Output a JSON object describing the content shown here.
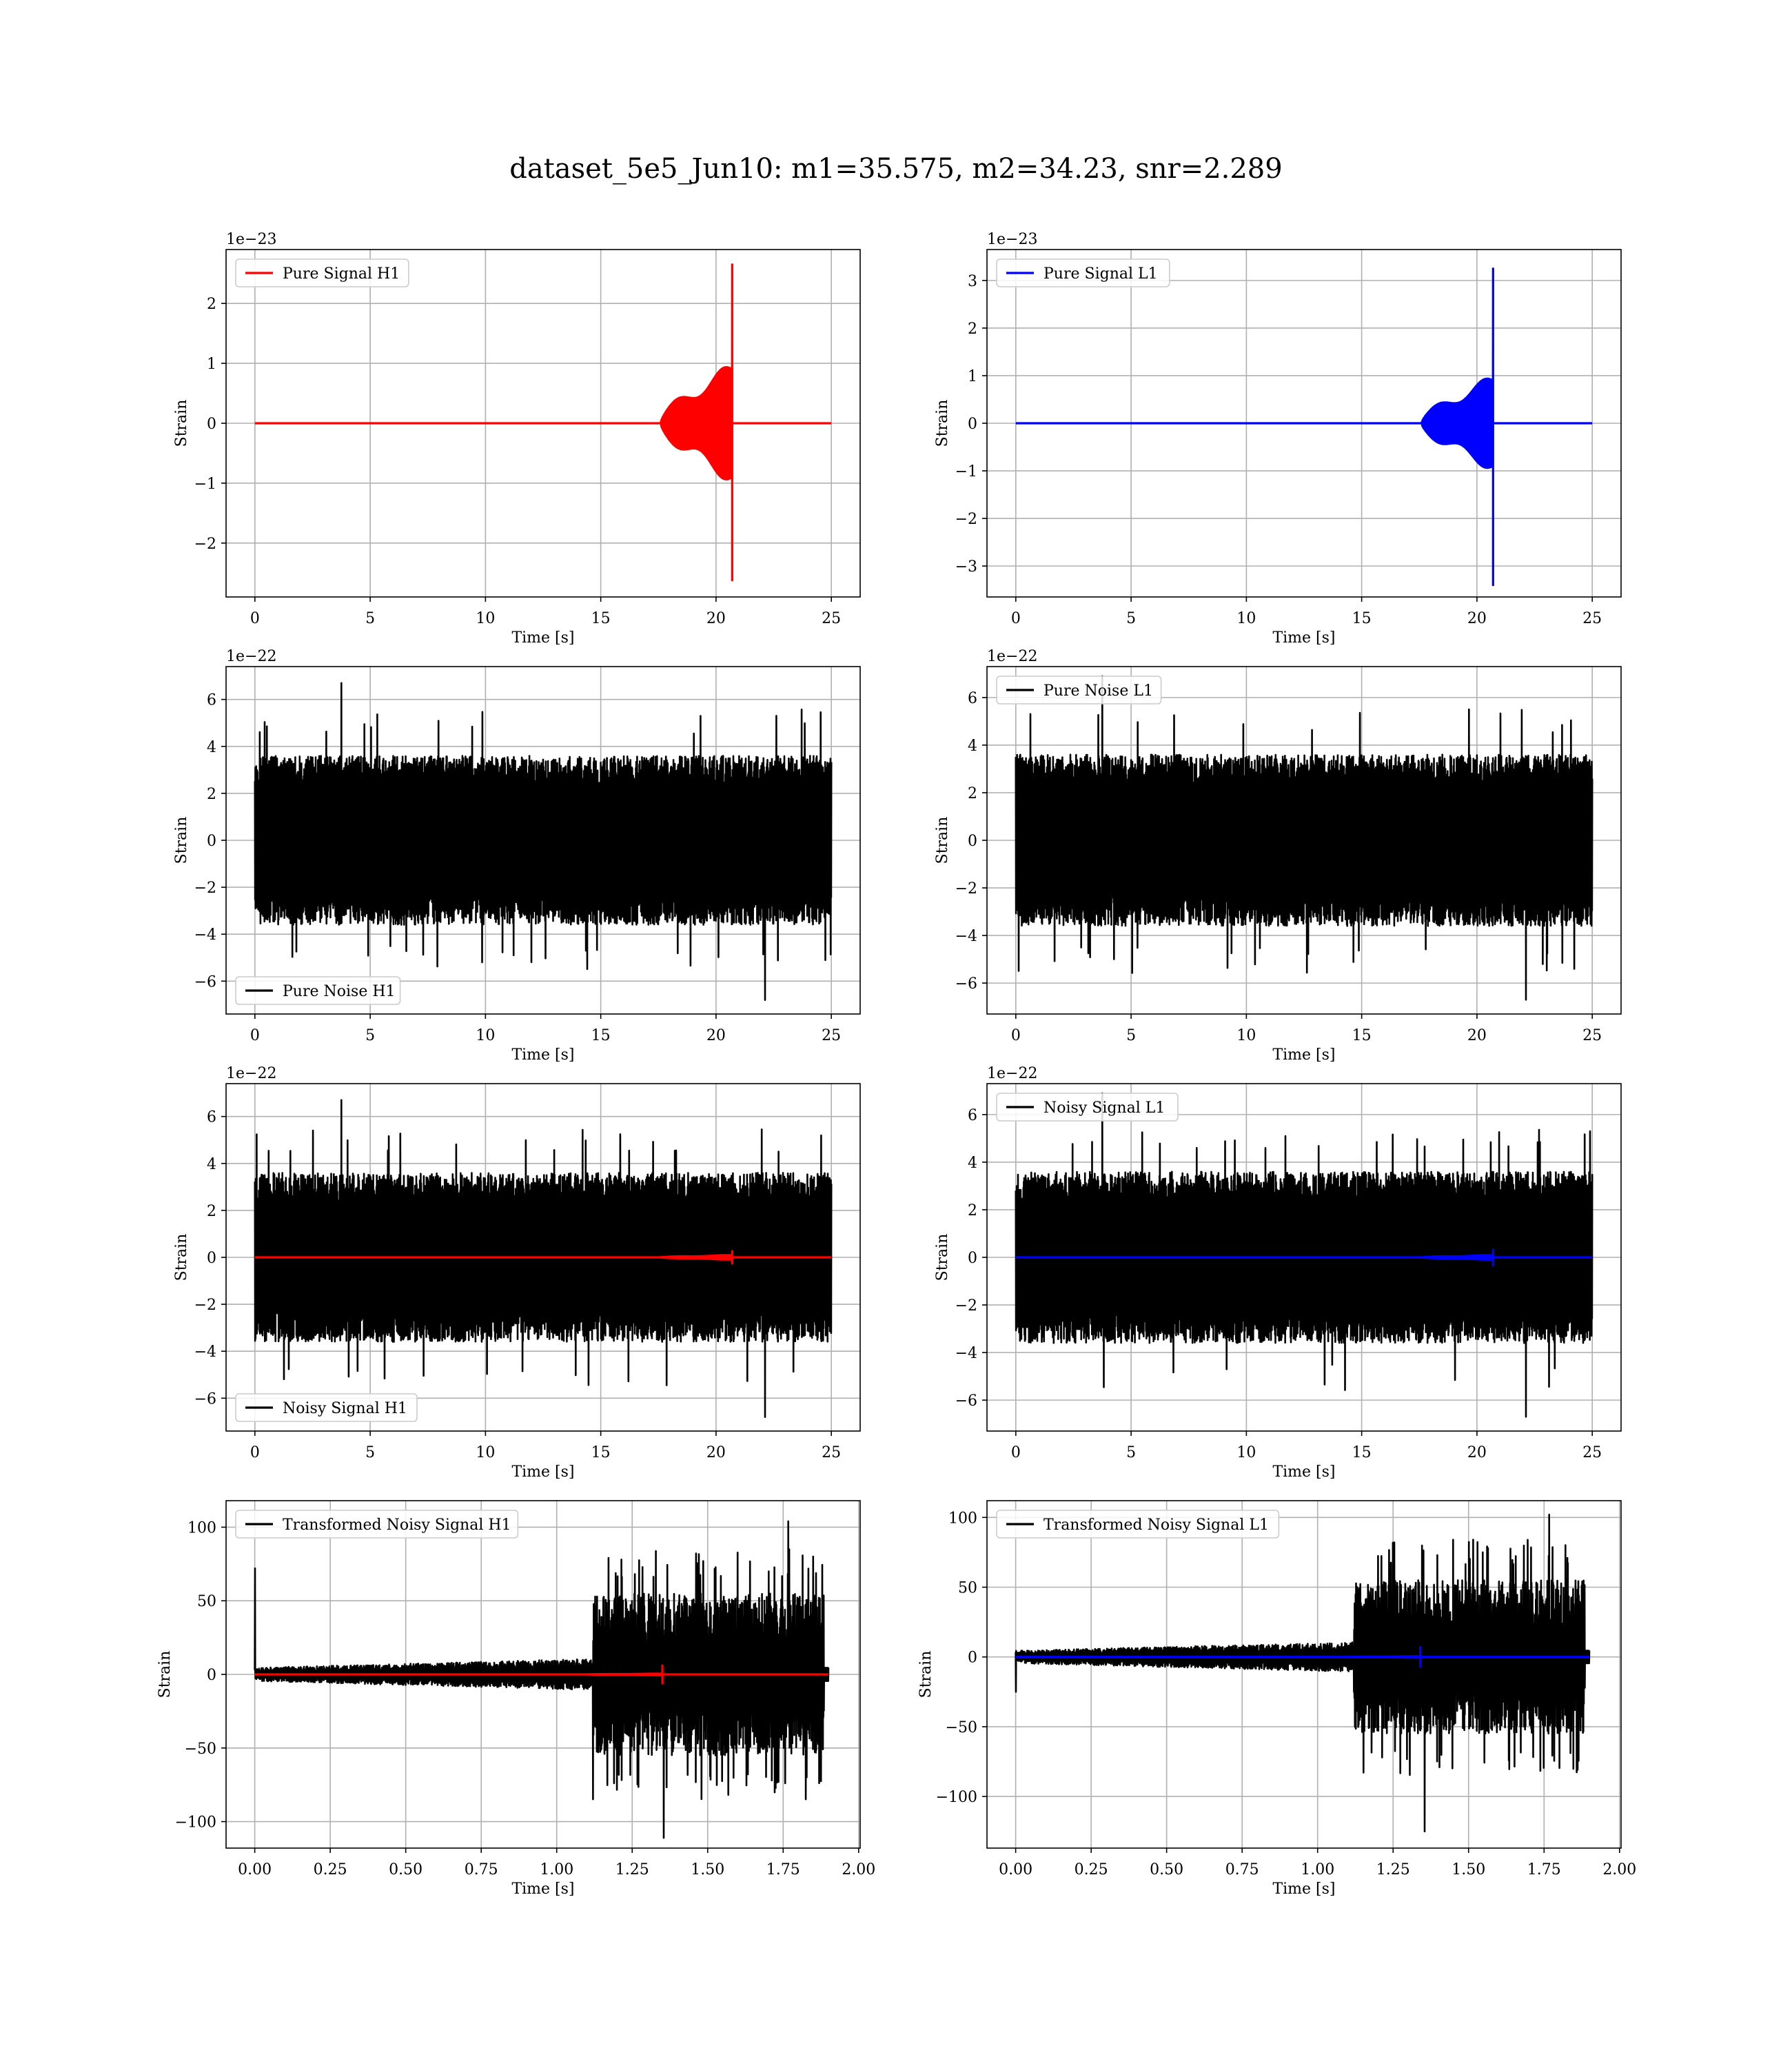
{
  "figure": {
    "title": "dataset_5e5_Jun10: m1=35.575, m2=34.23, snr=2.289"
  },
  "chart_data": [
    {
      "id": "pure-signal-h1",
      "type": "line",
      "ylabel": "Strain",
      "xlabel": "Time [s]",
      "multiplier": "1e−23",
      "xlim": [
        -1.25,
        26.25
      ],
      "ylim": [
        -2.9,
        2.9
      ],
      "xticks": [
        0,
        5,
        10,
        15,
        20,
        25
      ],
      "yticks": [
        -2,
        -1,
        0,
        1,
        2
      ],
      "grid": true,
      "legend_position": "upper-left",
      "series": [
        {
          "name": "Pure Signal H1",
          "color": "#ff0000",
          "kind": "chirp",
          "t0": 0,
          "t1": 25,
          "t_onset": 17.6,
          "t_merge": 20.7,
          "peak_pos": 2.65,
          "peak_neg": -2.62,
          "inspiral_amp": 1.0
        }
      ]
    },
    {
      "id": "pure-signal-l1",
      "type": "line",
      "ylabel": "Strain",
      "xlabel": "Time [s]",
      "multiplier": "1e−23",
      "xlim": [
        -1.25,
        26.25
      ],
      "ylim": [
        -3.65,
        3.65
      ],
      "xticks": [
        0,
        5,
        10,
        15,
        20,
        25
      ],
      "yticks": [
        -3,
        -2,
        -1,
        0,
        1,
        2,
        3
      ],
      "grid": true,
      "legend_position": "upper-left",
      "series": [
        {
          "name": "Pure Signal L1",
          "color": "#0000ff",
          "kind": "chirp",
          "t0": 0,
          "t1": 25,
          "t_onset": 17.6,
          "t_merge": 20.7,
          "peak_pos": 3.25,
          "peak_neg": -3.4,
          "inspiral_amp": 1.0
        }
      ]
    },
    {
      "id": "pure-noise-h1",
      "type": "line",
      "ylabel": "Strain",
      "xlabel": "Time [s]",
      "multiplier": "1e−22",
      "xlim": [
        -1.25,
        26.25
      ],
      "ylim": [
        -7.4,
        7.4
      ],
      "xticks": [
        0,
        5,
        10,
        15,
        20,
        25
      ],
      "yticks": [
        -6,
        -4,
        -2,
        0,
        2,
        4,
        6
      ],
      "grid": true,
      "legend_position": "lower-left",
      "series": [
        {
          "name": "Pure Noise H1",
          "color": "#000000",
          "kind": "noise",
          "t0": 0,
          "t1": 25,
          "core": 3.6,
          "spike_max": 6.7,
          "spike_min": -6.8
        }
      ]
    },
    {
      "id": "pure-noise-l1",
      "type": "line",
      "ylabel": "Strain",
      "xlabel": "Time [s]",
      "multiplier": "1e−22",
      "xlim": [
        -1.25,
        26.25
      ],
      "ylim": [
        -7.3,
        7.3
      ],
      "xticks": [
        0,
        5,
        10,
        15,
        20,
        25
      ],
      "yticks": [
        -6,
        -4,
        -2,
        0,
        2,
        4,
        6
      ],
      "grid": true,
      "legend_position": "upper-left",
      "series": [
        {
          "name": "Pure Noise L1",
          "color": "#000000",
          "kind": "noise",
          "t0": 0,
          "t1": 25,
          "core": 3.6,
          "spike_max": 6.9,
          "spike_min": -6.7
        }
      ]
    },
    {
      "id": "noisy-signal-h1",
      "type": "line",
      "ylabel": "Strain",
      "xlabel": "Time [s]",
      "multiplier": "1e−22",
      "xlim": [
        -1.25,
        26.25
      ],
      "ylim": [
        -7.4,
        7.4
      ],
      "xticks": [
        0,
        5,
        10,
        15,
        20,
        25
      ],
      "yticks": [
        -6,
        -4,
        -2,
        0,
        2,
        4,
        6
      ],
      "grid": true,
      "legend_position": "lower-left",
      "series": [
        {
          "name": "Noisy Signal H1",
          "color": "#000000",
          "kind": "noise",
          "t0": 0,
          "t1": 25,
          "core": 3.6,
          "spike_max": 6.7,
          "spike_min": -6.8
        },
        {
          "name": "",
          "color": "#ff0000",
          "kind": "chirp",
          "t0": 0,
          "t1": 25,
          "t_onset": 17.6,
          "t_merge": 20.7,
          "peak_pos": 0.265,
          "peak_neg": -0.262,
          "inspiral_amp": 0.1
        }
      ]
    },
    {
      "id": "noisy-signal-l1",
      "type": "line",
      "ylabel": "Strain",
      "xlabel": "Time [s]",
      "multiplier": "1e−22",
      "xlim": [
        -1.25,
        26.25
      ],
      "ylim": [
        -7.3,
        7.3
      ],
      "xticks": [
        0,
        5,
        10,
        15,
        20,
        25
      ],
      "yticks": [
        -6,
        -4,
        -2,
        0,
        2,
        4,
        6
      ],
      "grid": true,
      "legend_position": "upper-left",
      "series": [
        {
          "name": "Noisy Signal L1",
          "color": "#000000",
          "kind": "noise",
          "t0": 0,
          "t1": 25,
          "core": 3.6,
          "spike_max": 6.9,
          "spike_min": -6.7
        },
        {
          "name": "",
          "color": "#0000ff",
          "kind": "chirp",
          "t0": 0,
          "t1": 25,
          "t_onset": 17.6,
          "t_merge": 20.7,
          "peak_pos": 0.325,
          "peak_neg": -0.34,
          "inspiral_amp": 0.1
        }
      ]
    },
    {
      "id": "transformed-noisy-signal-h1",
      "type": "line",
      "ylabel": "Strain",
      "xlabel": "Time [s]",
      "multiplier": "",
      "xlim": [
        -0.095,
        2.005
      ],
      "ylim": [
        -118,
        118
      ],
      "xticks": [
        0.0,
        0.25,
        0.5,
        0.75,
        1.0,
        1.25,
        1.5,
        1.75,
        2.0
      ],
      "xticklabels": [
        "0.00",
        "0.25",
        "0.50",
        "0.75",
        "1.00",
        "1.25",
        "1.50",
        "1.75",
        "2.00"
      ],
      "yticks": [
        -100,
        -50,
        0,
        50,
        100
      ],
      "grid": true,
      "legend_position": "upper-left",
      "series": [
        {
          "name": "Transformed Noisy Signal H1",
          "color": "#000000",
          "kind": "transformed",
          "t0": 0,
          "t1": 1.9,
          "t_jump": 1.12,
          "amp_low": 9,
          "amp_high": 55,
          "first_spike": 72,
          "spike_max": 104,
          "spike_min": -111
        },
        {
          "name": "",
          "color": "#ff0000",
          "kind": "chirp",
          "t0": 0,
          "t1": 1.9,
          "t_onset": 1.1,
          "t_merge": 1.35,
          "peak_pos": 6,
          "peak_neg": -6,
          "inspiral_amp": 0.5
        }
      ]
    },
    {
      "id": "transformed-noisy-signal-l1",
      "type": "line",
      "ylabel": "Strain",
      "xlabel": "Time [s]",
      "multiplier": "",
      "xlim": [
        -0.095,
        2.005
      ],
      "ylim": [
        -137,
        112
      ],
      "xticks": [
        0.0,
        0.25,
        0.5,
        0.75,
        1.0,
        1.25,
        1.5,
        1.75,
        2.0
      ],
      "xticklabels": [
        "0.00",
        "0.25",
        "0.50",
        "0.75",
        "1.00",
        "1.25",
        "1.50",
        "1.75",
        "2.00"
      ],
      "yticks": [
        -100,
        -50,
        0,
        50,
        100
      ],
      "grid": true,
      "legend_position": "upper-left",
      "series": [
        {
          "name": "Transformed Noisy Signal L1",
          "color": "#000000",
          "kind": "transformed",
          "t0": 0,
          "t1": 1.9,
          "t_jump": 1.12,
          "amp_low": 9,
          "amp_high": 55,
          "first_spike": -25,
          "spike_max": 102,
          "spike_min": -125
        },
        {
          "name": "",
          "color": "#0000ff",
          "kind": "chirp",
          "t0": 0,
          "t1": 1.9,
          "t_onset": 1.1,
          "t_merge": 1.34,
          "peak_pos": 7,
          "peak_neg": -7,
          "inspiral_amp": 0.5
        }
      ]
    }
  ]
}
